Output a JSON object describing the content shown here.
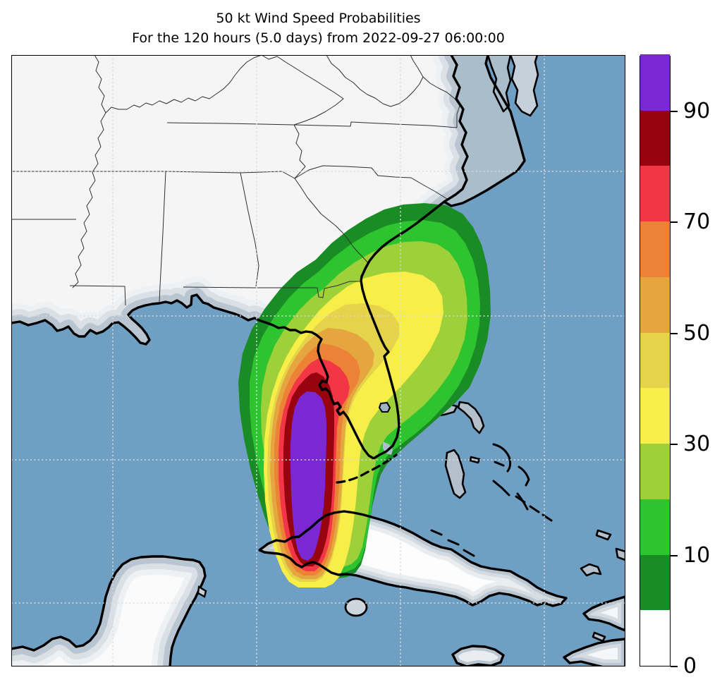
{
  "title": {
    "line1": "50 kt Wind Speed Probabilities",
    "line2": "For the 120 hours (5.0 days) from 2022-09-27 06:00:00"
  },
  "chart_data": {
    "type": "heatmap",
    "subtype": "filled-contour probability map (hurricane wind speed probabilities)",
    "title": "50 kt Wind Speed Probabilities",
    "subtitle": "For the 120 hours (5.0 days) from 2022-09-27 06:00:00",
    "units": "%",
    "levels": [
      0,
      5,
      10,
      20,
      30,
      40,
      50,
      60,
      70,
      80,
      90,
      100
    ],
    "colors": [
      "#ffffff",
      "#1a8c25",
      "#2ec430",
      "#9ed039",
      "#f7ee48",
      "#e5d34b",
      "#e5a63f",
      "#ec8236",
      "#f23646",
      "#97040f",
      "#7a29d2"
    ],
    "colorbar_tick_labels": [
      "0",
      "10",
      "30",
      "50",
      "70",
      "90"
    ],
    "colorbar_tick_boundary_index": [
      0,
      2,
      4,
      6,
      8,
      10
    ],
    "colorbar_position": "right",
    "grid": "dotted graticule, 4 vertical and 4 horizontal lines",
    "map_colors": {
      "ocean": "#6fa0c3",
      "land": "#f5f5f6",
      "coastal_shading": "#b9c6d1",
      "coastline": "#000000"
    },
    "description": "Probability of 50-kt winds over the southeastern US, Gulf of Mexico, Florida, Cuba and the Bahamas. Peak probabilities above 90% form a corridor from western Cuba north to the southwest Florida coast, decreasing outward in concentric bands (dark red, red, orange, amber, yellow, yellow-green, green, dark green) that stretch northeastward across Florida into Georgia, South Carolina and the adjacent Atlantic."
  }
}
